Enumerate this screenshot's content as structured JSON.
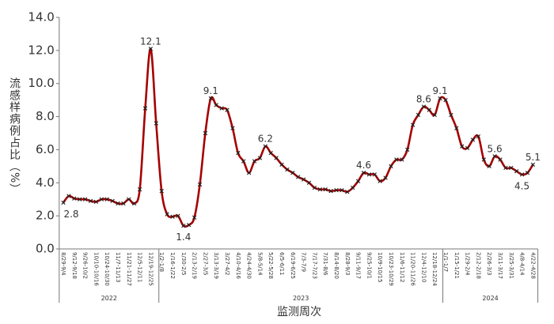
{
  "chart_data": {
    "type": "line",
    "x_label": "监测周次",
    "y_label": "流感样病例占比（%）",
    "categories": [
      "8/29-9/4",
      null,
      "9/12-9/18",
      null,
      "9/26-10/2",
      null,
      "10/10-10/16",
      null,
      "10/24-10/30",
      null,
      "11/7-11/13",
      null,
      "11/21-11/27",
      null,
      "12/5-12/11",
      null,
      "12/19-12/25",
      null,
      "1/2-1/8",
      null,
      "1/16-1/22",
      null,
      "1/30-2/5",
      null,
      "2/13-2/19",
      null,
      "2/27-3/5",
      null,
      "3/13-3/19",
      null,
      "3/27-4/2",
      null,
      "4/10-4/16",
      null,
      "4/24-4/30",
      null,
      "5/8-5/14",
      null,
      "5/22-5/28",
      null,
      "6/5-6/11",
      null,
      "6/19-6/25",
      null,
      "7/3-7/9",
      null,
      "7/17-7/23",
      null,
      "7/31-8/6",
      null,
      "8/14-8/20",
      null,
      "8/28-9/3",
      null,
      "9/11-9/17",
      null,
      "9/25-10/1",
      null,
      "10/9-10/15",
      null,
      "10/23-10/29",
      null,
      "11/6-11/12",
      null,
      "11/20-11/26",
      null,
      "12/4-12/10",
      null,
      "12/18-12/24",
      null,
      "1/1-1/7",
      null,
      "1/15-1/21",
      null,
      "1/29-2/4",
      null,
      "2/12-2/18",
      null,
      "2/26-3/3",
      null,
      "3/11-3/17",
      null,
      "3/25-3/31",
      null,
      "4/8-4/14",
      null,
      "4/22-4/28"
    ],
    "groups": [
      {
        "label": "2022",
        "count": 18
      },
      {
        "label": "2023",
        "count": 52
      },
      {
        "label": "2024",
        "count": 17
      }
    ],
    "values": [
      2.8,
      3.2,
      3.05,
      3.0,
      3.0,
      2.9,
      2.85,
      3.0,
      3.0,
      2.9,
      2.75,
      2.75,
      3.0,
      2.75,
      3.6,
      8.5,
      12.1,
      7.6,
      3.5,
      2.1,
      1.95,
      2.0,
      1.4,
      1.45,
      1.9,
      3.9,
      7.0,
      9.1,
      8.7,
      8.5,
      8.4,
      7.3,
      5.8,
      5.3,
      4.6,
      5.3,
      5.5,
      6.2,
      5.8,
      5.5,
      5.1,
      4.8,
      4.6,
      4.35,
      4.2,
      4.0,
      3.7,
      3.6,
      3.6,
      3.5,
      3.55,
      3.55,
      3.45,
      3.7,
      4.1,
      4.6,
      4.5,
      4.5,
      4.1,
      4.3,
      5.0,
      5.4,
      5.4,
      6.0,
      7.5,
      8.1,
      8.6,
      8.4,
      8.1,
      9.1,
      9.0,
      8.1,
      7.3,
      6.2,
      6.1,
      6.6,
      6.8,
      5.4,
      5.0,
      5.6,
      5.4,
      4.9,
      4.9,
      4.7,
      4.5,
      4.6,
      5.1
    ],
    "labeled_points": [
      0,
      16,
      22,
      27,
      37,
      55,
      66,
      69,
      79,
      84,
      86
    ],
    "color": "#a50000",
    "marker_color": "#222222",
    "ylim": [
      0,
      14
    ],
    "yticks": [
      {
        "value": 0,
        "label": "0.0"
      },
      {
        "value": 2,
        "label": "2.0"
      },
      {
        "value": 4,
        "label": "4.0"
      },
      {
        "value": 6,
        "label": "6.0"
      },
      {
        "value": 8,
        "label": "8.0"
      },
      {
        "value": 10,
        "label": "10.0"
      },
      {
        "value": 12,
        "label": "12.0"
      },
      {
        "value": 14,
        "label": "14.0"
      }
    ],
    "grid": false
  }
}
